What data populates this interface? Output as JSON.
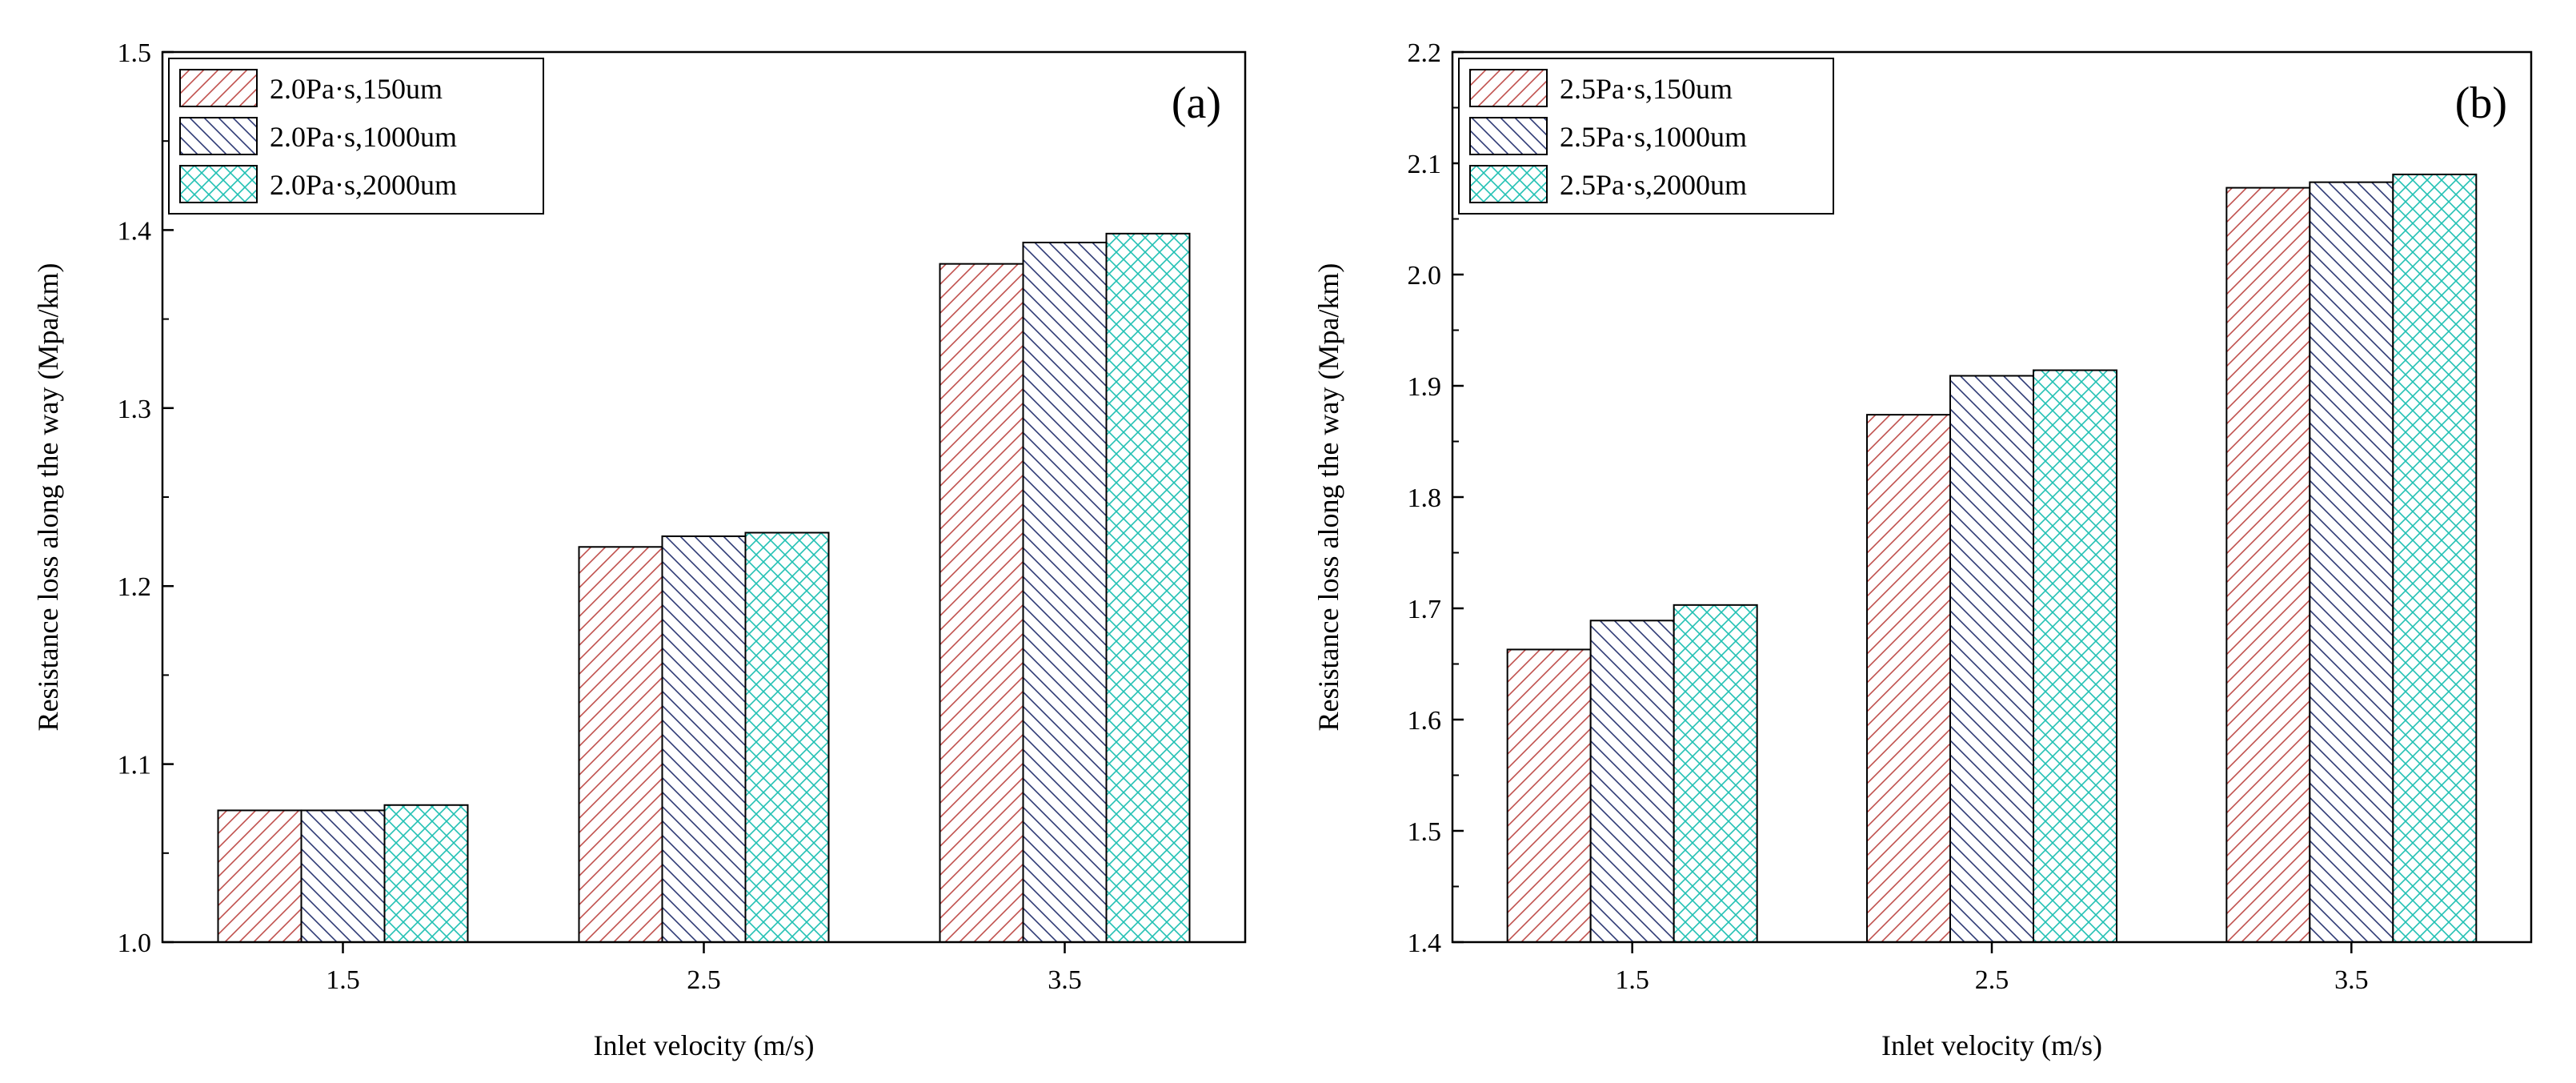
{
  "chart_data": [
    {
      "type": "bar",
      "panel_label": "(a)",
      "categories": [
        "1.5",
        "2.5",
        "3.5"
      ],
      "series": [
        {
          "name": "2.0Pa·s,150um",
          "values": [
            1.074,
            1.222,
            1.381
          ],
          "color": "#c0504d",
          "pattern": "diag-right"
        },
        {
          "name": "2.0Pa·s,1000um",
          "values": [
            1.074,
            1.228,
            1.393
          ],
          "color": "#2e3a75",
          "pattern": "diag-left"
        },
        {
          "name": "2.0Pa·s,2000um",
          "values": [
            1.077,
            1.23,
            1.398
          ],
          "color": "#22c1b4",
          "pattern": "cross"
        }
      ],
      "xlabel": "Inlet velocity (m/s)",
      "ylabel": "Resistance loss along the way (Mpa/km)",
      "ylim": [
        1.0,
        1.5
      ],
      "yticks": [
        "1.0",
        "1.1",
        "1.2",
        "1.3",
        "1.4",
        "1.5"
      ],
      "grid": false,
      "legend": "top-left"
    },
    {
      "type": "bar",
      "panel_label": "(b)",
      "categories": [
        "1.5",
        "2.5",
        "3.5"
      ],
      "series": [
        {
          "name": "2.5Pa·s,150um",
          "values": [
            1.663,
            1.874,
            2.078
          ],
          "color": "#c0504d",
          "pattern": "diag-right"
        },
        {
          "name": "2.5Pa·s,1000um",
          "values": [
            1.689,
            1.909,
            2.083
          ],
          "color": "#2e3a75",
          "pattern": "diag-left"
        },
        {
          "name": "2.5Pa·s,2000um",
          "values": [
            1.703,
            1.914,
            2.09
          ],
          "color": "#22c1b4",
          "pattern": "cross"
        }
      ],
      "xlabel": "Inlet velocity (m/s)",
      "ylabel": "Resistance loss along the way (Mpa/km)",
      "ylim": [
        1.4,
        2.2
      ],
      "yticks": [
        "1.4",
        "1.5",
        "1.6",
        "1.7",
        "1.8",
        "1.9",
        "2.0",
        "2.1",
        "2.2"
      ],
      "grid": false,
      "legend": "top-left"
    }
  ]
}
